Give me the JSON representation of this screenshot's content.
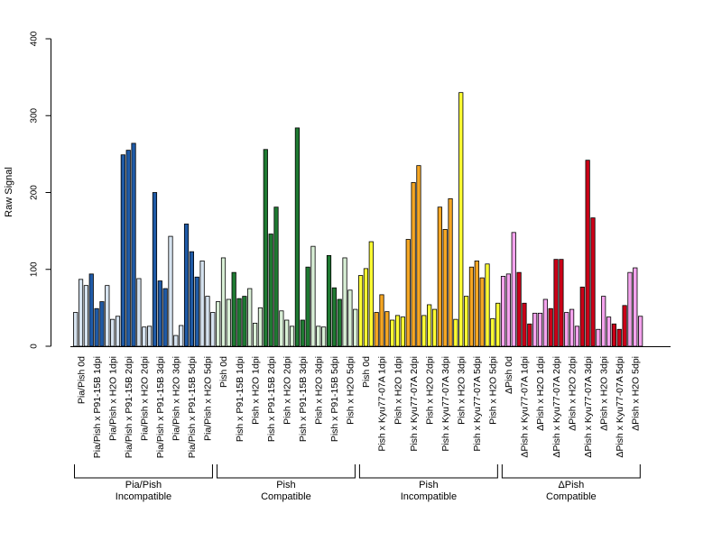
{
  "chart_data": {
    "type": "bar",
    "ylabel": "Raw Signal",
    "ylim": [
      0,
      400
    ],
    "yticks": [
      0,
      100,
      200,
      300,
      400
    ],
    "grid": false,
    "categories": [
      "Pia/Pish 0d",
      "Pia/Pish x P91-15B 1dpi",
      "Pia/Pish x H2O 1dpi",
      "Pia/Pish x P91-15B 2dpi",
      "Pia/Pish x H2O 2dpi",
      "Pia/Pish x P91-15B 3dpi",
      "Pia/Pish x H2O 3dpi",
      "Pia/Pish x P91-15B 5dpi",
      "Pia/Pish x H2O 5dpi",
      "Pish 0d",
      "Pish x P91-15B 1dpi",
      "Pish x H2O 1dpi",
      "Pish x P91-15B 2dpi",
      "Pish x H2O 2dpi",
      "Pish x P91-15B 3dpi",
      "Pish x H2O 3dpi",
      "Pish x P91-15B 5dpi",
      "Pish x H2O 5dpi",
      "Pish 0d",
      "Pish x Kyu77-07A 1dpi",
      "Pish x H2O 1dpi",
      "Pish x Kyu77-07A 2dpi",
      "Pish x H2O 2dpi",
      "Pish x Kyu77-07A 3dpi",
      "Pish x H2O 3dpi",
      "Pish x Kyu77-07A 5dpi",
      "Pish x H2O 5dpi",
      "ΔPish 0d",
      "ΔPish x Kyu77-07A 1dpi",
      "ΔPish x H2O 1dpi",
      "ΔPish x Kyu77-07A 2dpi",
      "ΔPish x H2O 2dpi",
      "ΔPish x Kyu77-07A 3dpi",
      "ΔPish x H2O 3dpi",
      "ΔPish x Kyu77-07A 5dpi",
      "ΔPish x H2O 5dpi"
    ],
    "values": [
      [
        44,
        87,
        79
      ],
      [
        94,
        49,
        58
      ],
      [
        79,
        35,
        39
      ],
      [
        249,
        255,
        264
      ],
      [
        88,
        25,
        26
      ],
      [
        200,
        85,
        75
      ],
      [
        143,
        14,
        27
      ],
      [
        159,
        123,
        90
      ],
      [
        111,
        65,
        44
      ],
      [
        58,
        115,
        61
      ],
      [
        96,
        62,
        65
      ],
      [
        75,
        30,
        50
      ],
      [
        256,
        146,
        181
      ],
      [
        46,
        34,
        26
      ],
      [
        284,
        34,
        103
      ],
      [
        130,
        26,
        25
      ],
      [
        118,
        76,
        61
      ],
      [
        115,
        73,
        48
      ],
      [
        92,
        101,
        136
      ],
      [
        44,
        67,
        45
      ],
      [
        34,
        40,
        38
      ],
      [
        139,
        213,
        235
      ],
      [
        40,
        54,
        48
      ],
      [
        181,
        152,
        192
      ],
      [
        35,
        330,
        65
      ],
      [
        103,
        111,
        89
      ],
      [
        107,
        36,
        56
      ],
      [
        91,
        94,
        148
      ],
      [
        96,
        56,
        29
      ],
      [
        43,
        43,
        61
      ],
      [
        49,
        113,
        113
      ],
      [
        44,
        48,
        26
      ],
      [
        77,
        242,
        167
      ],
      [
        22,
        65,
        38
      ],
      [
        29,
        22,
        53
      ],
      [
        96,
        102,
        39
      ]
    ],
    "groups": [
      {
        "line1": "Pia/Pish",
        "line2": "Incompatible",
        "dark": "#1f5aa6",
        "light": "#d6e3f0",
        "start": 0,
        "end": 8
      },
      {
        "line1": "Pish",
        "line2": "Compatible",
        "dark": "#1f7a32",
        "light": "#d9efd6",
        "start": 9,
        "end": 17
      },
      {
        "line1": "Pish",
        "line2": "Incompatible",
        "dark": "#f5a623",
        "light": "#ffff33",
        "start": 18,
        "end": 26
      },
      {
        "line1": "ΔPish",
        "line2": "Compatible",
        "dark": "#cc0018",
        "light": "#f5a3ee",
        "start": 27,
        "end": 35
      }
    ]
  }
}
